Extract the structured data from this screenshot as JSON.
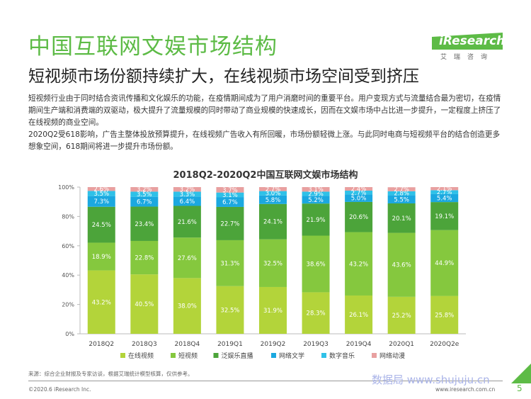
{
  "header": {
    "title": "中国互联网文娱市场结构",
    "subtitle": "短视频市场份额持续扩大，在线视频市场空间受到挤压"
  },
  "logo": {
    "brand": "iResearch",
    "tagline": "艾瑞咨询"
  },
  "paragraphs": [
    "短视频行业由于同时结合资讯传播和文化娱乐的功能，在疫情期间成为了用户消磨时间的重要平台。用户变现方式与流量结合最为密切，在疫情期间生产端和消费端的双驱动，极大提升了流量规模的同时带动了商业规模的快速成长，因而在文娱市场中占比进一步提升，一定程度上挤压了在线视频的商业空间。",
    "2020Q2受618影响，广告主整体投放预算提升，在线视频广告收入有所回暖，市场份额轻微上涨。与此同时电商与短视频平台的结合创造更多想象空间，618期间将进一步提升市场份额。"
  ],
  "chart_data": {
    "type": "bar",
    "stacked": true,
    "title": "2018Q2-2020Q2中国互联网文娱市场结构",
    "categories": [
      "2018Q2",
      "2018Q3",
      "2018Q4",
      "2019Q1",
      "2019Q2",
      "2019Q3",
      "2019Q4",
      "2020Q1",
      "2020Q2e"
    ],
    "yticks": [
      "0%",
      "20%",
      "40%",
      "60%",
      "80%",
      "100%"
    ],
    "ylim": [
      0,
      100
    ],
    "legend_position": "bottom",
    "series": [
      {
        "name": "在线视频",
        "color": "#b3d43a",
        "values": [
          43.2,
          40.5,
          38.0,
          32.5,
          31.9,
          28.3,
          26.1,
          25.2,
          25.8
        ],
        "labels": [
          "43.2%",
          "40.5%",
          "38.0%",
          "32.5%",
          "31.9%",
          "28.3%",
          "26.1%",
          "25.2%",
          "25.8%"
        ]
      },
      {
        "name": "短视频",
        "color": "#85c83e",
        "values": [
          18.9,
          22.8,
          27.6,
          31.3,
          32.5,
          38.6,
          43.2,
          43.6,
          44.9
        ],
        "labels": [
          "18.9%",
          "22.8%",
          "27.6%",
          "31.3%",
          "32.5%",
          "38.6%",
          "43.2%",
          "43.6%",
          "44.9%"
        ]
      },
      {
        "name": "泛娱乐直播",
        "color": "#4ca43a",
        "values": [
          24.5,
          23.4,
          21.6,
          22.7,
          24.1,
          21.9,
          20.6,
          20.1,
          19.1
        ],
        "labels": [
          "24.5%",
          "23.4%",
          "21.6%",
          "22.7%",
          "24.1%",
          "21.9%",
          "20.6%",
          "20.1%",
          "19.1%"
        ]
      },
      {
        "name": "网络文学",
        "color": "#1ba8e0",
        "values": [
          7.3,
          6.7,
          6.4,
          6.7,
          5.8,
          5.2,
          5.0,
          5.5,
          5.4
        ],
        "labels": [
          "7.3%",
          "6.7%",
          "6.4%",
          "6.7%",
          "5.8%",
          "5.2%",
          "5.0%",
          "5.5%",
          "5.4%"
        ]
      },
      {
        "name": "数字音乐",
        "color": "#2fc1e8",
        "values": [
          3.5,
          3.5,
          3.3,
          3.1,
          3.0,
          2.9,
          2.7,
          2.8,
          2.7
        ],
        "labels": [
          "3.5%",
          "3.5%",
          "3.3%",
          "3.1%",
          "3.0%",
          "2.9%",
          "2.7%",
          "2.8%",
          "2.7%"
        ]
      },
      {
        "name": "网络动漫",
        "color": "#e8a0a0",
        "values": [
          2.6,
          3.2,
          3.2,
          3.7,
          2.7,
          3.1,
          2.4,
          2.7,
          2.1
        ],
        "labels": [
          "2.6%",
          "3.2%",
          "3.2%",
          "3.7%",
          "2.7%",
          "3.1%",
          "2.4%",
          "2.7%",
          "2.1%"
        ]
      }
    ]
  },
  "footer": {
    "source": "来源：综合企业财报及专家访谈，根据艾瑞统计模型核算，仅供参考。",
    "copyright": "©2020.6 iResearch Inc.",
    "website": "www.iresearch.com.cn",
    "page_number": "5",
    "watermark": "数据局 www.shujuju.cn"
  }
}
